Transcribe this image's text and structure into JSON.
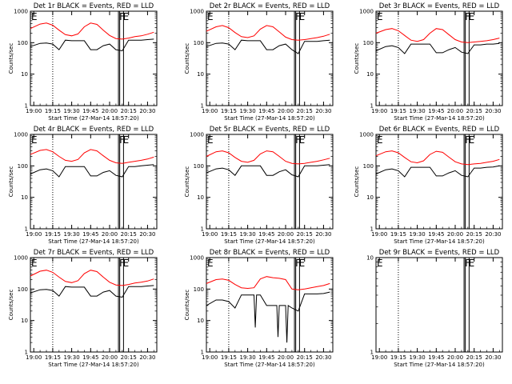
{
  "chart_data": [
    {
      "type": "line",
      "title": "Det 1r BLACK = Events, RED = LLD",
      "xlabel": "Start Time (27-Mar-14 18:57:20)",
      "ylabel": "Counts/sec",
      "xticks": [
        "19:00",
        "19:15",
        "19:30",
        "19:45",
        "20:00",
        "20:15",
        "20:30"
      ],
      "yticks": [
        "1",
        "10",
        "100",
        "1000"
      ],
      "ylim": [
        1,
        1000
      ],
      "yscale": "log",
      "markers": [
        "E",
        "F",
        "E"
      ],
      "series": [
        {
          "color": "#ff0000",
          "x": [
            "18:57",
            "19:05",
            "19:10",
            "19:15",
            "19:20",
            "19:25",
            "19:30",
            "19:35",
            "19:40",
            "19:45",
            "19:50",
            "19:55",
            "20:00",
            "20:05",
            "20:10",
            "20:15",
            "20:20",
            "20:25",
            "20:30",
            "20:35"
          ],
          "values": [
            280,
            390,
            420,
            360,
            250,
            180,
            165,
            190,
            320,
            420,
            380,
            250,
            170,
            135,
            130,
            140,
            155,
            165,
            185,
            215
          ]
        },
        {
          "color": "#000000",
          "x": [
            "18:57",
            "19:05",
            "19:10",
            "19:15",
            "19:20",
            "19:25",
            "19:30",
            "19:35",
            "19:40",
            "19:45",
            "19:50",
            "19:55",
            "20:00",
            "20:05",
            "20:10",
            "20:15",
            "20:20",
            "20:25",
            "20:30",
            "20:35"
          ],
          "values": [
            75,
            95,
            98,
            90,
            60,
            120,
            115,
            115,
            115,
            60,
            60,
            80,
            90,
            60,
            55,
            120,
            120,
            120,
            125,
            130
          ]
        }
      ]
    },
    {
      "type": "line",
      "title": "Det 2r BLACK = Events, RED = LLD",
      "xlabel": "Start Time (27-Mar-14 18:57:20)",
      "ylabel": "Counts/sec",
      "xticks": [
        "19:00",
        "19:15",
        "19:30",
        "19:45",
        "20:00",
        "20:15",
        "20:30"
      ],
      "yticks": [
        "1",
        "10",
        "100",
        "1000"
      ],
      "ylim": [
        1,
        1000
      ],
      "yscale": "log",
      "markers": [
        "E",
        "F",
        "E"
      ],
      "series": [
        {
          "color": "#ff0000",
          "x": [
            "18:57",
            "19:05",
            "19:10",
            "19:15",
            "19:20",
            "19:25",
            "19:30",
            "19:35",
            "19:40",
            "19:45",
            "19:50",
            "19:55",
            "20:00",
            "20:05",
            "20:10",
            "20:15",
            "20:20",
            "20:25",
            "20:30",
            "20:35"
          ],
          "values": [
            230,
            320,
            350,
            300,
            210,
            155,
            145,
            165,
            270,
            350,
            320,
            220,
            150,
            125,
            120,
            125,
            135,
            145,
            160,
            185
          ]
        },
        {
          "color": "#000000",
          "x": [
            "18:57",
            "19:05",
            "19:10",
            "19:15",
            "19:20",
            "19:25",
            "19:30",
            "19:35",
            "19:40",
            "19:45",
            "19:50",
            "19:55",
            "20:00",
            "20:05",
            "20:10",
            "20:15",
            "20:20",
            "20:25",
            "20:30",
            "20:35"
          ],
          "values": [
            75,
            95,
            98,
            90,
            60,
            120,
            115,
            115,
            115,
            60,
            60,
            80,
            90,
            60,
            45,
            110,
            110,
            110,
            115,
            120
          ]
        }
      ]
    },
    {
      "type": "line",
      "title": "Det 3r BLACK = Events, RED = LLD",
      "xlabel": "Start Time (27-Mar-14 18:57:20)",
      "ylabel": "Counts/sec",
      "xticks": [
        "19:00",
        "19:15",
        "19:30",
        "19:45",
        "20:00",
        "20:15",
        "20:30"
      ],
      "yticks": [
        "1",
        "10",
        "100",
        "1000"
      ],
      "ylim": [
        1,
        1000
      ],
      "yscale": "log",
      "markers": [
        "E",
        "F",
        "E"
      ],
      "series": [
        {
          "color": "#ff0000",
          "x": [
            "18:57",
            "19:05",
            "19:10",
            "19:15",
            "19:20",
            "19:25",
            "19:30",
            "19:35",
            "19:40",
            "19:45",
            "19:50",
            "19:55",
            "20:00",
            "20:05",
            "20:10",
            "20:15",
            "20:20",
            "20:25",
            "20:30",
            "20:35"
          ],
          "values": [
            200,
            260,
            280,
            240,
            170,
            120,
            110,
            125,
            200,
            280,
            260,
            180,
            125,
            105,
            100,
            105,
            110,
            115,
            125,
            140
          ]
        },
        {
          "color": "#000000",
          "x": [
            "18:57",
            "19:05",
            "19:10",
            "19:15",
            "19:20",
            "19:25",
            "19:30",
            "19:35",
            "19:40",
            "19:45",
            "19:50",
            "19:55",
            "20:00",
            "20:05",
            "20:10",
            "20:15",
            "20:20",
            "20:25",
            "20:30",
            "20:35"
          ],
          "values": [
            55,
            75,
            80,
            70,
            45,
            90,
            90,
            90,
            90,
            48,
            48,
            60,
            70,
            50,
            45,
            85,
            85,
            90,
            90,
            95
          ]
        }
      ]
    },
    {
      "type": "line",
      "title": "Det 4r BLACK = Events, RED = LLD",
      "xlabel": "Start Time (27-Mar-14 18:57:20)",
      "ylabel": "Counts/sec",
      "xticks": [
        "19:00",
        "19:15",
        "19:30",
        "19:45",
        "20:00",
        "20:15",
        "20:30"
      ],
      "yticks": [
        "1",
        "10",
        "100",
        "1000"
      ],
      "ylim": [
        1,
        1000
      ],
      "yscale": "log",
      "markers": [
        "E",
        "F",
        "E"
      ],
      "series": [
        {
          "color": "#ff0000",
          "x": [
            "18:57",
            "19:05",
            "19:10",
            "19:15",
            "19:20",
            "19:25",
            "19:30",
            "19:35",
            "19:40",
            "19:45",
            "19:50",
            "19:55",
            "20:00",
            "20:05",
            "20:10",
            "20:15",
            "20:20",
            "20:25",
            "20:30",
            "20:35"
          ],
          "values": [
            230,
            310,
            330,
            280,
            200,
            150,
            140,
            160,
            260,
            330,
            300,
            210,
            150,
            125,
            120,
            130,
            140,
            150,
            165,
            190
          ]
        },
        {
          "color": "#000000",
          "x": [
            "18:57",
            "19:05",
            "19:10",
            "19:15",
            "19:20",
            "19:25",
            "19:30",
            "19:35",
            "19:40",
            "19:45",
            "19:50",
            "19:55",
            "20:00",
            "20:05",
            "20:10",
            "20:15",
            "20:20",
            "20:25",
            "20:30",
            "20:35"
          ],
          "values": [
            55,
            75,
            80,
            70,
            45,
            95,
            95,
            95,
            95,
            48,
            48,
            62,
            70,
            50,
            45,
            95,
            95,
            100,
            105,
            110
          ]
        }
      ]
    },
    {
      "type": "line",
      "title": "Det 5r BLACK = Events, RED = LLD",
      "xlabel": "Start Time (27-Mar-14 18:57:20)",
      "ylabel": "Counts/sec",
      "xticks": [
        "19:00",
        "19:15",
        "19:30",
        "19:45",
        "20:00",
        "20:15",
        "20:30"
      ],
      "yticks": [
        "1",
        "10",
        "100",
        "1000"
      ],
      "ylim": [
        1,
        1000
      ],
      "yscale": "log",
      "markers": [
        "E",
        "F",
        "E"
      ],
      "series": [
        {
          "color": "#ff0000",
          "x": [
            "18:57",
            "19:05",
            "19:10",
            "19:15",
            "19:20",
            "19:25",
            "19:30",
            "19:35",
            "19:40",
            "19:45",
            "19:50",
            "19:55",
            "20:00",
            "20:05",
            "20:10",
            "20:15",
            "20:20",
            "20:25",
            "20:30",
            "20:35"
          ],
          "values": [
            200,
            280,
            300,
            260,
            185,
            140,
            130,
            150,
            240,
            300,
            280,
            200,
            140,
            120,
            115,
            120,
            130,
            140,
            155,
            175
          ]
        },
        {
          "color": "#000000",
          "x": [
            "18:57",
            "19:05",
            "19:10",
            "19:15",
            "19:20",
            "19:25",
            "19:30",
            "19:35",
            "19:40",
            "19:45",
            "19:50",
            "19:55",
            "20:00",
            "20:05",
            "20:10",
            "20:15",
            "20:20",
            "20:25",
            "20:30",
            "20:35"
          ],
          "values": [
            60,
            80,
            85,
            75,
            50,
            100,
            100,
            100,
            100,
            50,
            50,
            65,
            75,
            52,
            45,
            100,
            100,
            100,
            105,
            110
          ]
        }
      ]
    },
    {
      "type": "line",
      "title": "Det 6r BLACK = Events, RED = LLD",
      "xlabel": "Start Time (27-Mar-14 18:57:20)",
      "ylabel": "Counts/sec",
      "xticks": [
        "19:00",
        "19:15",
        "19:30",
        "19:45",
        "20:00",
        "20:15",
        "20:30"
      ],
      "yticks": [
        "1",
        "10",
        "100",
        "1000"
      ],
      "ylim": [
        1,
        1000
      ],
      "yscale": "log",
      "markers": [
        "E",
        "F",
        "E"
      ],
      "series": [
        {
          "color": "#ff0000",
          "x": [
            "18:57",
            "19:05",
            "19:10",
            "19:15",
            "19:20",
            "19:25",
            "19:30",
            "19:35",
            "19:40",
            "19:45",
            "19:50",
            "19:55",
            "20:00",
            "20:05",
            "20:10",
            "20:15",
            "20:20",
            "20:25",
            "20:30",
            "20:35"
          ],
          "values": [
            210,
            280,
            300,
            260,
            185,
            135,
            125,
            145,
            230,
            290,
            270,
            190,
            135,
            115,
            110,
            115,
            120,
            130,
            140,
            160
          ]
        },
        {
          "color": "#000000",
          "x": [
            "18:57",
            "19:05",
            "19:10",
            "19:15",
            "19:20",
            "19:25",
            "19:30",
            "19:35",
            "19:40",
            "19:45",
            "19:50",
            "19:55",
            "20:00",
            "20:05",
            "20:10",
            "20:15",
            "20:20",
            "20:25",
            "20:30",
            "20:35"
          ],
          "values": [
            55,
            75,
            80,
            70,
            45,
            90,
            90,
            90,
            90,
            48,
            48,
            60,
            70,
            50,
            45,
            85,
            85,
            90,
            92,
            100
          ]
        }
      ]
    },
    {
      "type": "line",
      "title": "Det 7r BLACK = Events, RED = LLD",
      "xlabel": "Start Time (27-Mar-14 18:57:20)",
      "ylabel": "Counts/sec",
      "xticks": [
        "19:00",
        "19:15",
        "19:30",
        "19:45",
        "20:00",
        "20:15",
        "20:30"
      ],
      "yticks": [
        "1",
        "10",
        "100",
        "1000"
      ],
      "ylim": [
        1,
        1000
      ],
      "yscale": "log",
      "markers": [
        "E",
        "F",
        "E"
      ],
      "series": [
        {
          "color": "#ff0000",
          "x": [
            "18:57",
            "19:05",
            "19:10",
            "19:15",
            "19:20",
            "19:25",
            "19:30",
            "19:35",
            "19:40",
            "19:45",
            "19:50",
            "19:55",
            "20:00",
            "20:05",
            "20:10",
            "20:15",
            "20:20",
            "20:25",
            "20:30",
            "20:35"
          ],
          "values": [
            260,
            370,
            400,
            340,
            240,
            175,
            160,
            185,
            310,
            400,
            360,
            240,
            165,
            135,
            130,
            140,
            155,
            165,
            180,
            210
          ]
        },
        {
          "color": "#000000",
          "x": [
            "18:57",
            "19:05",
            "19:10",
            "19:15",
            "19:20",
            "19:25",
            "19:30",
            "19:35",
            "19:40",
            "19:45",
            "19:50",
            "19:55",
            "20:00",
            "20:05",
            "20:10",
            "20:15",
            "20:20",
            "20:25",
            "20:30",
            "20:35"
          ],
          "values": [
            75,
            95,
            98,
            90,
            60,
            120,
            115,
            115,
            115,
            60,
            60,
            80,
            90,
            60,
            55,
            120,
            120,
            120,
            125,
            130
          ]
        }
      ]
    },
    {
      "type": "line",
      "title": "Det 8r BLACK = Events, RED = LLD",
      "xlabel": "Start Time (27-Mar-14 18:57:20)",
      "ylabel": "Counts/sec",
      "xticks": [
        "19:00",
        "19:15",
        "19:30",
        "19:45",
        "20:00",
        "20:15",
        "20:30"
      ],
      "yticks": [
        "1",
        "10",
        "100",
        "1000"
      ],
      "ylim": [
        1,
        1000
      ],
      "yscale": "log",
      "markers": [
        "E",
        "F",
        "E"
      ],
      "series": [
        {
          "color": "#ff0000",
          "x": [
            "18:57",
            "19:05",
            "19:10",
            "19:15",
            "19:20",
            "19:25",
            "19:30",
            "19:35",
            "19:40",
            "19:45",
            "19:50",
            "19:55",
            "20:00",
            "20:05",
            "20:10",
            "20:15",
            "20:20",
            "20:25",
            "20:30",
            "20:35"
          ],
          "values": [
            150,
            200,
            210,
            190,
            140,
            110,
            105,
            110,
            210,
            250,
            230,
            220,
            200,
            100,
            95,
            100,
            110,
            120,
            130,
            150
          ]
        },
        {
          "color": "#000000",
          "x": [
            "18:57",
            "19:05",
            "19:10",
            "19:15",
            "19:20",
            "19:25",
            "19:30",
            "19:35",
            "19:36",
            "19:37",
            "19:40",
            "19:45",
            "19:50",
            "19:53",
            "19:54",
            "19:55",
            "20:00",
            "20:01",
            "20:02",
            "20:05",
            "20:10",
            "20:15",
            "20:20",
            "20:25",
            "20:30",
            "20:35"
          ],
          "values": [
            30,
            45,
            45,
            40,
            25,
            65,
            65,
            65,
            6,
            65,
            65,
            30,
            30,
            30,
            3,
            30,
            30,
            2,
            30,
            25,
            20,
            70,
            70,
            70,
            72,
            80
          ]
        }
      ]
    },
    {
      "type": "line",
      "title": "Det 9r BLACK = Events, RED = LLD",
      "xlabel": "Start Time (27-Mar-14 18:57:20)",
      "ylabel": "",
      "xticks": [
        "19:00",
        "19:15",
        "19:30",
        "19:45",
        "20:00",
        "20:15",
        "20:30"
      ],
      "yticks": [
        "1",
        "10"
      ],
      "ylim": [
        1,
        10
      ],
      "yscale": "log",
      "markers": [
        "E",
        "F",
        "E"
      ],
      "series": []
    }
  ]
}
